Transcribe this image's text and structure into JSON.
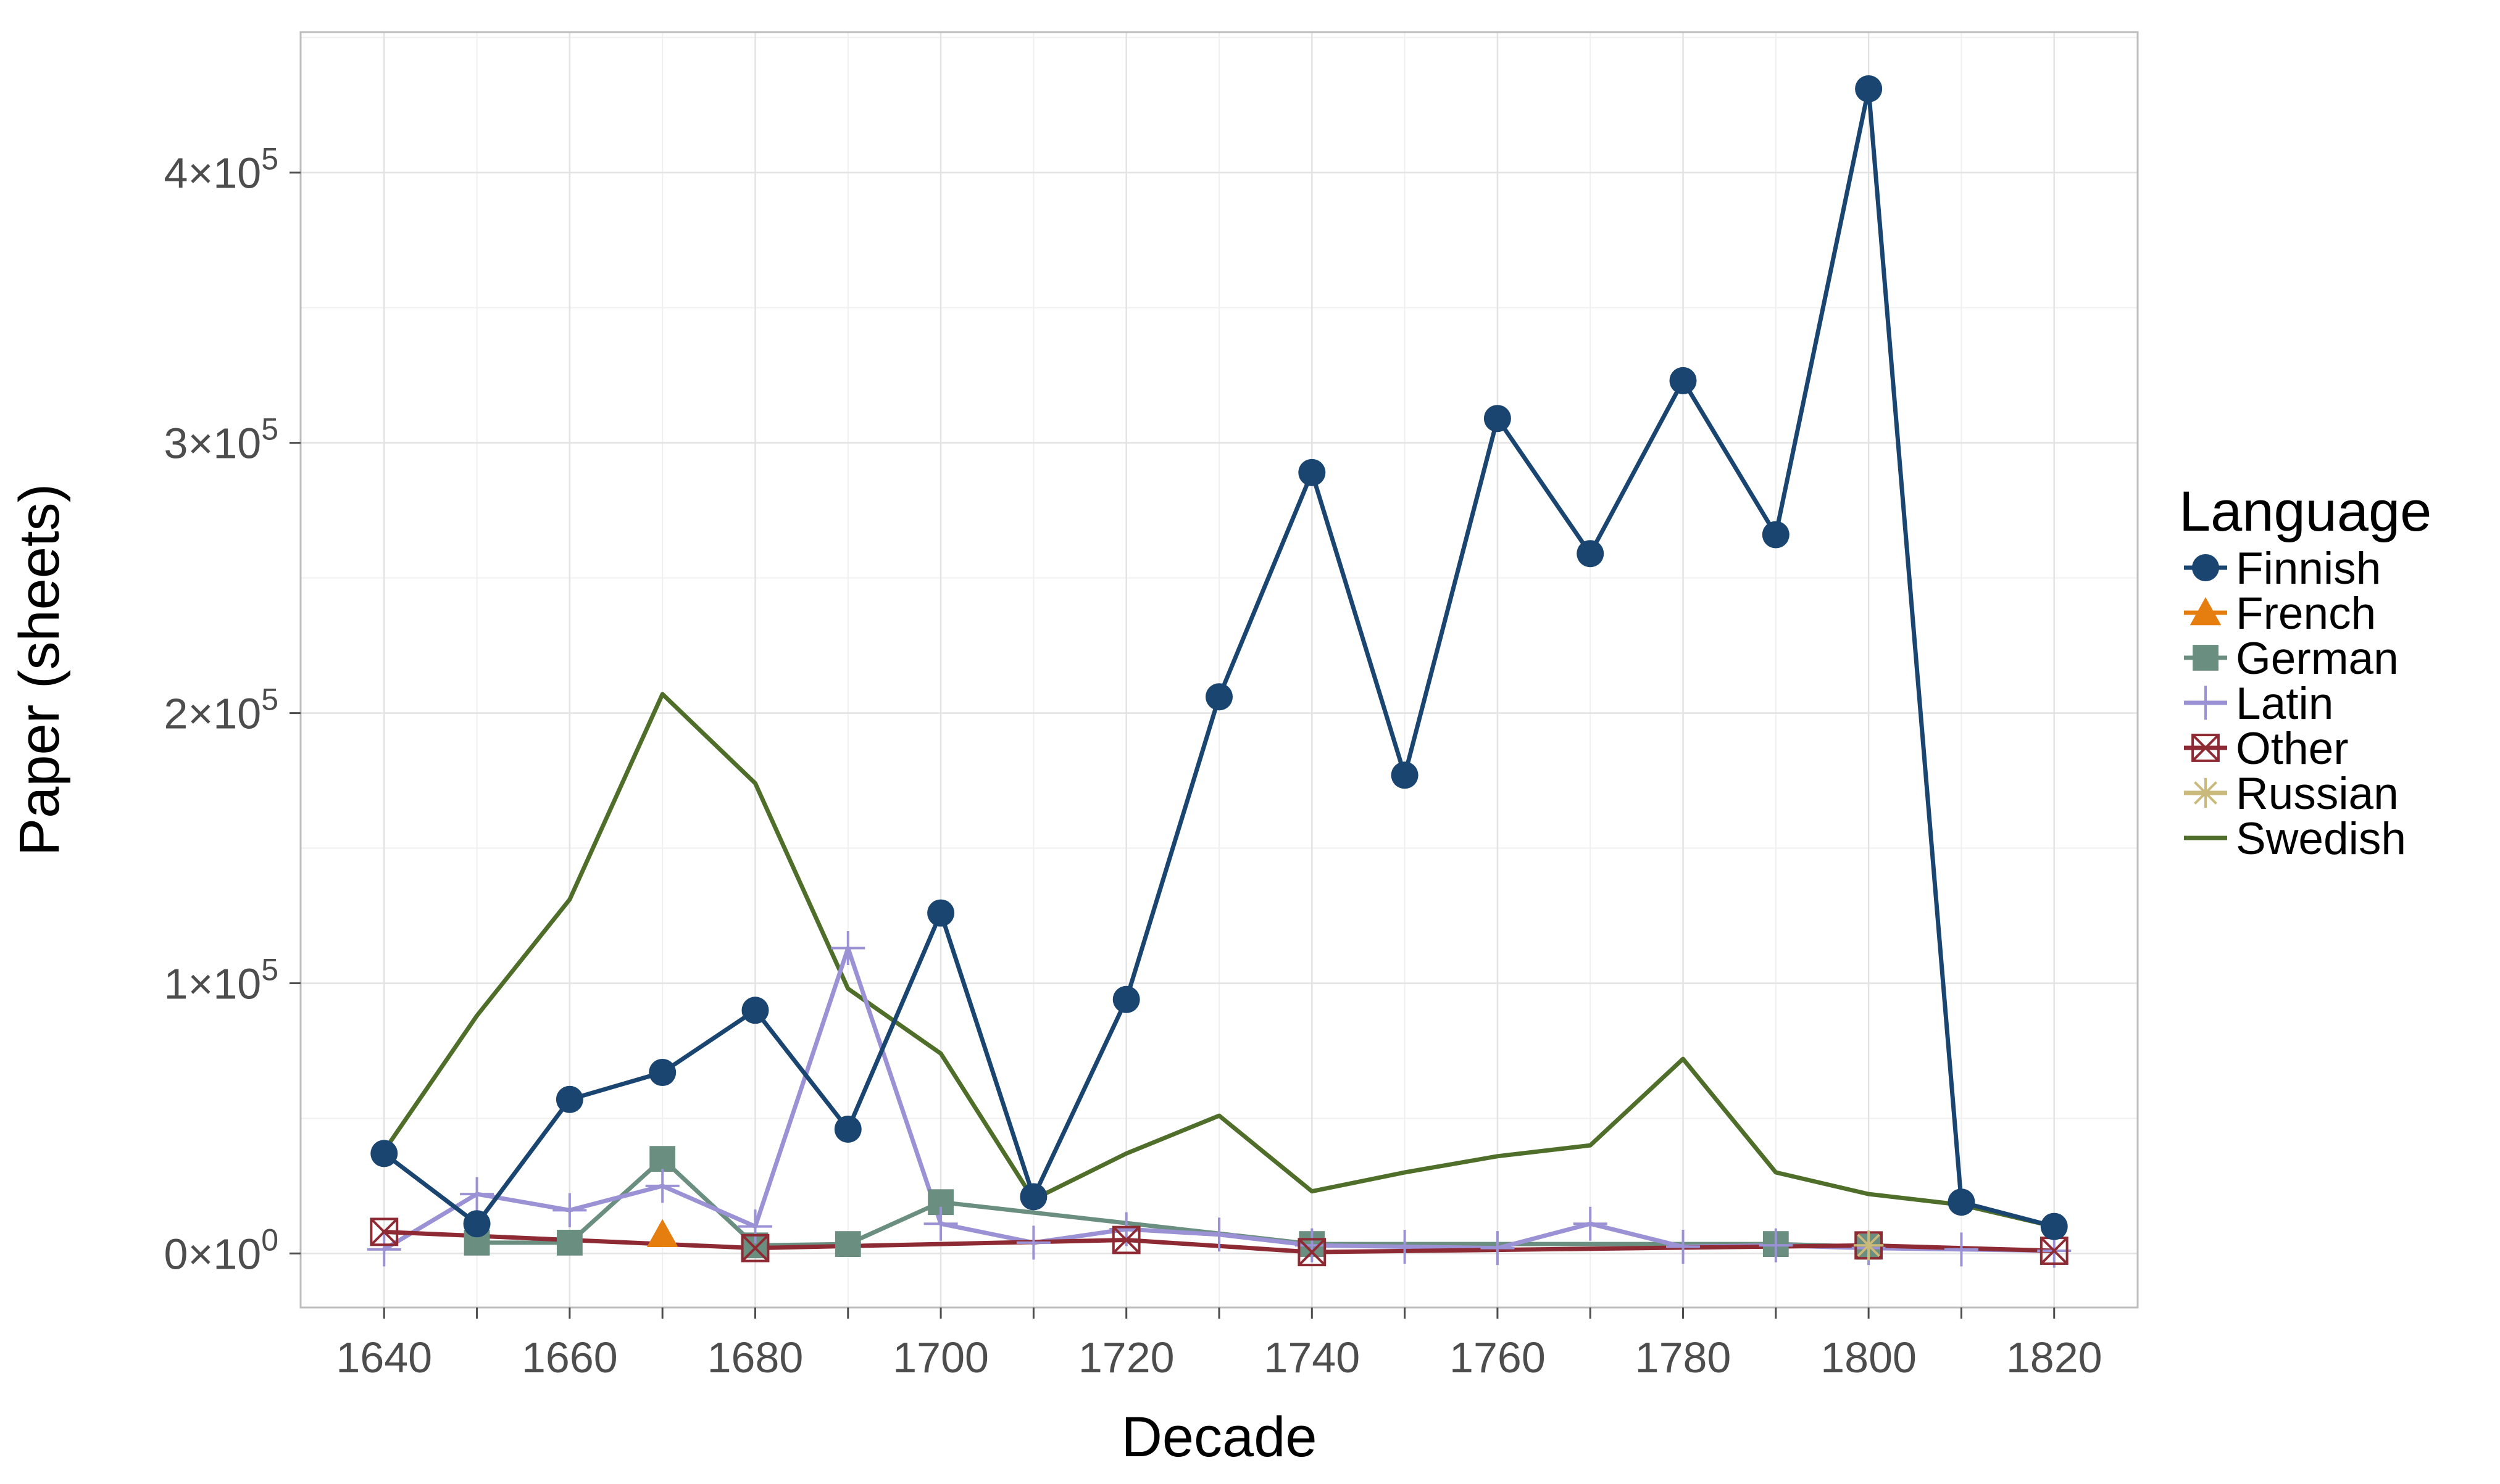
{
  "chart_data": {
    "type": "line",
    "xlabel": "Decade",
    "ylabel": "Paper (sheets)",
    "xlim": [
      1631,
      1829
    ],
    "ylim": [
      -20000,
      452000
    ],
    "x_ticks": [
      1640,
      1660,
      1680,
      1700,
      1720,
      1740,
      1760,
      1780,
      1800,
      1820
    ],
    "x_tick_labels": [
      "1640",
      "1660",
      "1680",
      "1700",
      "1720",
      "1740",
      "1760",
      "1780",
      "1800",
      "1820"
    ],
    "y_ticks": [
      {
        "value": 0,
        "mantissa": "0",
        "exponent": "0"
      },
      {
        "value": 100000,
        "mantissa": "1",
        "exponent": "5"
      },
      {
        "value": 200000,
        "mantissa": "2",
        "exponent": "5"
      },
      {
        "value": 300000,
        "mantissa": "3",
        "exponent": "5"
      },
      {
        "value": 400000,
        "mantissa": "4",
        "exponent": "5"
      }
    ],
    "times_symbol": "×",
    "grid": true,
    "legend": {
      "title": "Language",
      "position": "right"
    },
    "series": [
      {
        "name": "Finnish",
        "color": "#1a4570",
        "marker": "circle",
        "points": [
          [
            1640,
            37000
          ],
          [
            1650,
            11000
          ],
          [
            1660,
            57000
          ],
          [
            1670,
            67000
          ],
          [
            1680,
            90000
          ],
          [
            1690,
            46000
          ],
          [
            1700,
            126000
          ],
          [
            1710,
            21000
          ],
          [
            1720,
            94000
          ],
          [
            1730,
            206000
          ],
          [
            1740,
            289000
          ],
          [
            1750,
            177000
          ],
          [
            1760,
            309000
          ],
          [
            1770,
            259000
          ],
          [
            1780,
            323000
          ],
          [
            1790,
            266000
          ],
          [
            1800,
            431000
          ],
          [
            1810,
            19000
          ],
          [
            1820,
            10000
          ]
        ]
      },
      {
        "name": "French",
        "color": "#e67e0f",
        "marker": "triangle",
        "points": [
          [
            1670,
            7000
          ]
        ]
      },
      {
        "name": "German",
        "color": "#6a8e80",
        "marker": "square",
        "points": [
          [
            1650,
            4000
          ],
          [
            1660,
            4000
          ],
          [
            1670,
            35000
          ],
          [
            1680,
            3000
          ],
          [
            1690,
            3500
          ],
          [
            1700,
            19000
          ],
          [
            1740,
            3500
          ],
          [
            1790,
            3500
          ],
          [
            1800,
            2500
          ]
        ]
      },
      {
        "name": "Latin",
        "color": "#9b92d6",
        "marker": "plus",
        "points": [
          [
            1640,
            1500
          ],
          [
            1650,
            22000
          ],
          [
            1660,
            16000
          ],
          [
            1670,
            25000
          ],
          [
            1680,
            10000
          ],
          [
            1690,
            113000
          ],
          [
            1700,
            11000
          ],
          [
            1710,
            4000
          ],
          [
            1720,
            9000
          ],
          [
            1730,
            7000
          ],
          [
            1740,
            3000
          ],
          [
            1750,
            2500
          ],
          [
            1760,
            2000
          ],
          [
            1770,
            11000
          ],
          [
            1780,
            2500
          ],
          [
            1790,
            3000
          ],
          [
            1800,
            2000
          ],
          [
            1810,
            1500
          ],
          [
            1820,
            1000
          ]
        ]
      },
      {
        "name": "Other",
        "color": "#8e2a33",
        "marker": "boxcross",
        "points": [
          [
            1640,
            8000
          ],
          [
            1680,
            2000
          ],
          [
            1720,
            5000
          ],
          [
            1740,
            500
          ],
          [
            1800,
            3000
          ],
          [
            1820,
            1000
          ]
        ]
      },
      {
        "name": "Russian",
        "color": "#c9b97a",
        "marker": "asterisk",
        "points": [
          [
            1800,
            3000
          ]
        ]
      },
      {
        "name": "Swedish",
        "color": "#4f6e2a",
        "marker": "none",
        "points": [
          [
            1640,
            38000
          ],
          [
            1650,
            88000
          ],
          [
            1660,
            131000
          ],
          [
            1670,
            207000
          ],
          [
            1680,
            174000
          ],
          [
            1690,
            98000
          ],
          [
            1700,
            74000
          ],
          [
            1710,
            20000
          ],
          [
            1720,
            37000
          ],
          [
            1730,
            51000
          ],
          [
            1740,
            23000
          ],
          [
            1750,
            30000
          ],
          [
            1760,
            36000
          ],
          [
            1770,
            40000
          ],
          [
            1780,
            72000
          ],
          [
            1790,
            30000
          ],
          [
            1800,
            22000
          ],
          [
            1810,
            18000
          ],
          [
            1820,
            10000
          ]
        ]
      }
    ]
  }
}
